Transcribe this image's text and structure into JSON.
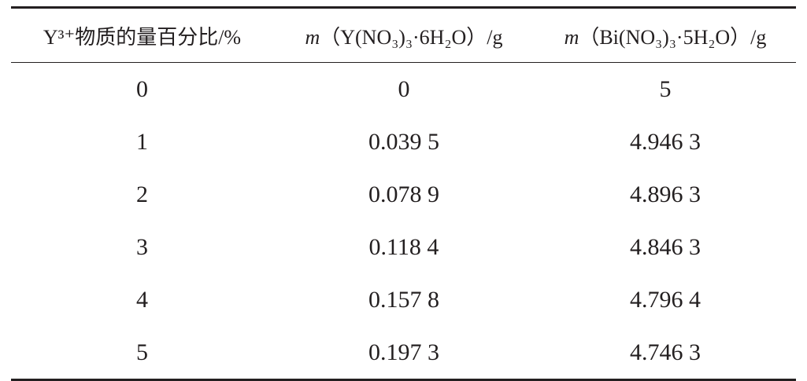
{
  "table": {
    "header": [
      {
        "text": "Y³⁺物质的量百分比/%"
      },
      {
        "symbol": "m",
        "text": "（Y(NO₃)₃·6H₂O）/g"
      },
      {
        "symbol": "m",
        "text": "（Bi(NO₃)₃·5H₂O）/g"
      }
    ],
    "rows": [
      [
        "0",
        "0",
        "5"
      ],
      [
        "1",
        "0.039 5",
        "4.946 3"
      ],
      [
        "2",
        "0.078 9",
        "4.896 3"
      ],
      [
        "3",
        "0.118 4",
        "4.846 3"
      ],
      [
        "4",
        "0.157 8",
        "4.796 4"
      ],
      [
        "5",
        "0.197 3",
        "4.746 3"
      ]
    ]
  }
}
